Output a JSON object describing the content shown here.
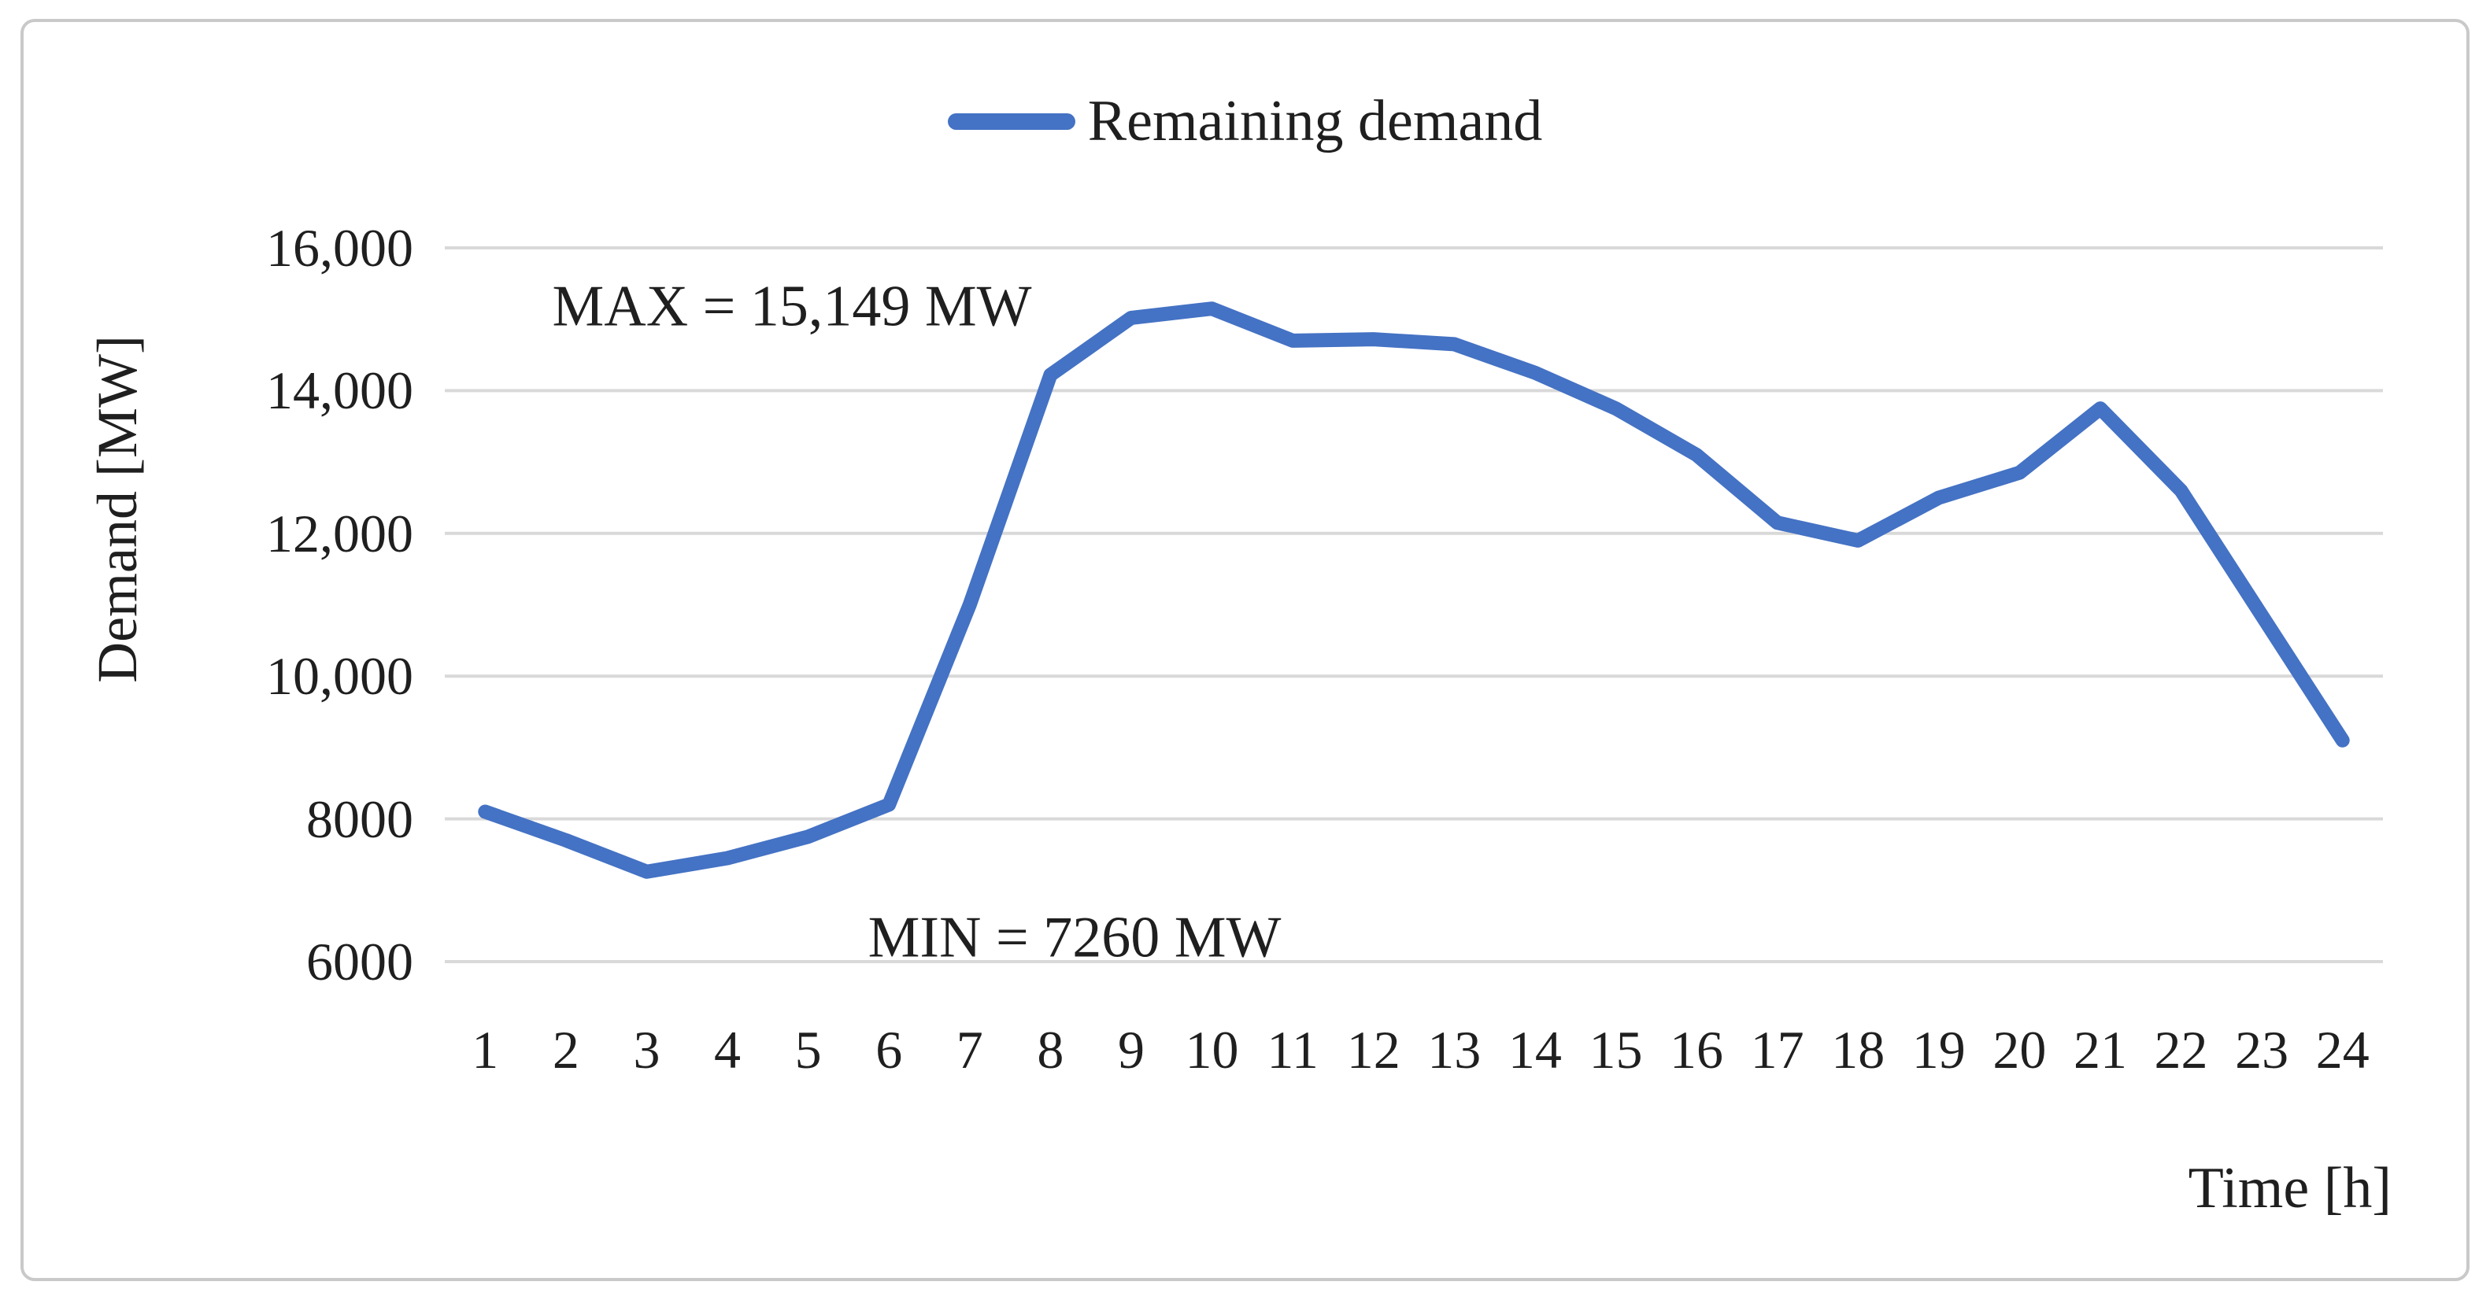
{
  "chart_data": {
    "type": "line",
    "title": "",
    "xlabel": "Time [h]",
    "ylabel": "Demand [MW]",
    "legend": {
      "position": "top",
      "label": "Remaining demand"
    },
    "grid": true,
    "ylim": [
      6000,
      16000
    ],
    "categories": [
      "1",
      "2",
      "3",
      "4",
      "5",
      "6",
      "7",
      "8",
      "9",
      "10",
      "11",
      "12",
      "13",
      "14",
      "15",
      "16",
      "17",
      "18",
      "19",
      "20",
      "21",
      "22",
      "23",
      "24"
    ],
    "series": [
      {
        "name": "Remaining demand",
        "values": [
          8100,
          7700,
          7260,
          7450,
          7750,
          8200,
          11000,
          14220,
          15020,
          15149,
          14700,
          14720,
          14650,
          14250,
          13750,
          13100,
          12150,
          11900,
          12500,
          12850,
          13750,
          12600,
          10850,
          9100
        ]
      }
    ],
    "yticks": [
      {
        "value": 16000,
        "label": "16,000"
      },
      {
        "value": 14000,
        "label": "14,000"
      },
      {
        "value": 12000,
        "label": "12,000"
      },
      {
        "value": 10000,
        "label": "10,000"
      },
      {
        "value": 8000,
        "label": "8000"
      },
      {
        "value": 6000,
        "label": "6000"
      }
    ],
    "annotations": [
      {
        "id": "max",
        "text": "MAX = 15,149 MW"
      },
      {
        "id": "min",
        "text": "MIN = 7260 MW"
      }
    ],
    "colors": {
      "line": "#4472C4",
      "gridline": "#D9D9D9",
      "text": "#1f1f1f",
      "frame": "#c9c9c9"
    }
  }
}
